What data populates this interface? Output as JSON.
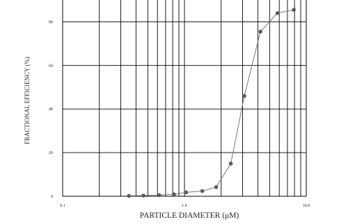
{
  "chart_data": {
    "type": "line",
    "title": "",
    "xlabel": "PARTICLE DIAMETER (μM)",
    "ylabel": "FRACTIONAL EFFICIENCY (%)",
    "x_scale": "log",
    "xlim": [
      0.1,
      10.0
    ],
    "ylim": [
      0,
      90
    ],
    "x_tick_labels": [
      "0.1",
      "1.0",
      "10.0"
    ],
    "y_tick_labels": [
      "0",
      "20",
      "40",
      "60",
      "80"
    ],
    "grid": true,
    "series": [
      {
        "x": [
          0.35,
          0.46,
          0.62,
          0.82,
          1.03,
          1.4,
          1.82,
          2.4,
          3.1,
          4.2,
          5.8,
          7.9
        ],
        "y": [
          0.2,
          0.3,
          0.5,
          0.9,
          1.8,
          2.4,
          4.2,
          15.0,
          46.0,
          75.5,
          84.0,
          85.5
        ]
      }
    ],
    "colors": {
      "line": "#777777",
      "marker": "#5a5a5a",
      "grid": "#000000"
    }
  }
}
